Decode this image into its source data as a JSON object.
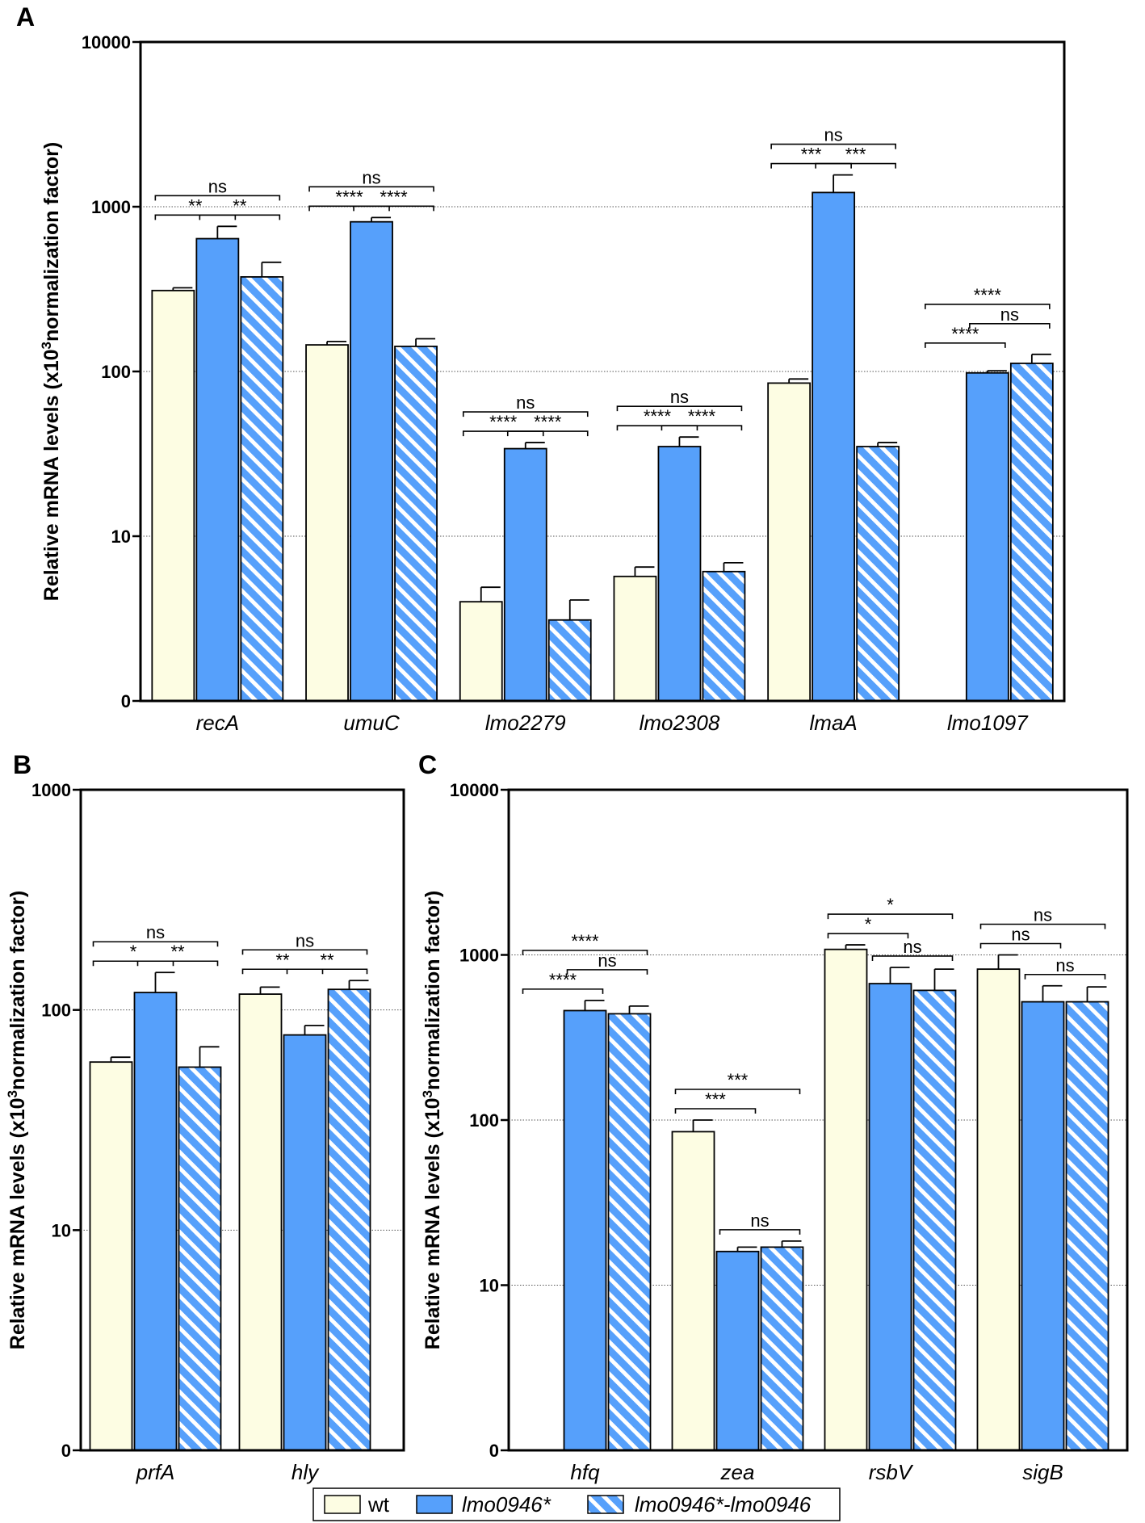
{
  "legend": [
    {
      "label": "wt",
      "italic": false,
      "fill": "#fdfde3"
    },
    {
      "label": "lmo0946*",
      "italic": true,
      "fill": "#56a0fb"
    },
    {
      "label": "lmo0946*-lmo0946",
      "italic": true,
      "fill": "#56a0fb",
      "pattern": "stripes"
    }
  ],
  "colors": {
    "wt": "#fdfde3",
    "mutant": "#56a0fb",
    "stripe": "#ffffff",
    "outline": "#000000",
    "grid": "#555555"
  },
  "chart_data": [
    {
      "panel": "A",
      "type": "bar",
      "scale": "log",
      "ylabel": "Relative mRNA levels (x10³normalization factor)",
      "ylabel_parts": [
        "Relative mRNA levels (x10",
        "3",
        "normalization factor)"
      ],
      "ylim": [
        1,
        10000
      ],
      "yticks": [
        1,
        10,
        100,
        1000,
        10000
      ],
      "ytick_labels": [
        "0",
        "10",
        "100",
        "1000",
        "10000"
      ],
      "categories": [
        "recA",
        "umuC",
        "lmo2279",
        "lmo2308",
        "lmaA",
        "lmo1097"
      ],
      "series": [
        {
          "name": "wt",
          "values": [
            310,
            145,
            4.0,
            5.7,
            85,
            null
          ],
          "errors": [
            322,
            152,
            4.9,
            6.5,
            90,
            null
          ]
        },
        {
          "name": "lmo0946*",
          "values": [
            640,
            810,
            34,
            35,
            1220,
            98
          ],
          "errors": [
            760,
            860,
            37,
            40,
            1560,
            101
          ]
        },
        {
          "name": "lmo0946*-lmo0946",
          "values": [
            375,
            142,
            3.1,
            6.1,
            35,
            112
          ],
          "errors": [
            460,
            158,
            4.1,
            6.9,
            37,
            127
          ]
        }
      ],
      "significance": [
        {
          "category": 0,
          "from": 0,
          "to": 1,
          "label": "**",
          "level": 1
        },
        {
          "category": 0,
          "from": 1,
          "to": 2,
          "label": "**",
          "level": 1
        },
        {
          "category": 0,
          "from": 0,
          "to": 2,
          "label": "ns",
          "level": 2
        },
        {
          "category": 1,
          "from": 0,
          "to": 1,
          "label": "****",
          "level": 1
        },
        {
          "category": 1,
          "from": 1,
          "to": 2,
          "label": "****",
          "level": 1
        },
        {
          "category": 1,
          "from": 0,
          "to": 2,
          "label": "ns",
          "level": 2
        },
        {
          "category": 2,
          "from": 0,
          "to": 1,
          "label": "****",
          "level": 1
        },
        {
          "category": 2,
          "from": 1,
          "to": 2,
          "label": "****",
          "level": 1
        },
        {
          "category": 2,
          "from": 0,
          "to": 2,
          "label": "ns",
          "level": 2
        },
        {
          "category": 3,
          "from": 0,
          "to": 1,
          "label": "****",
          "level": 1
        },
        {
          "category": 3,
          "from": 1,
          "to": 2,
          "label": "****",
          "level": 1
        },
        {
          "category": 3,
          "from": 0,
          "to": 2,
          "label": "ns",
          "level": 2
        },
        {
          "category": 4,
          "from": 0,
          "to": 1,
          "label": "***",
          "level": 1
        },
        {
          "category": 4,
          "from": 1,
          "to": 2,
          "label": "***",
          "level": 1
        },
        {
          "category": 4,
          "from": 0,
          "to": 2,
          "label": "ns",
          "level": 2
        },
        {
          "category": 5,
          "from": 0,
          "to": 1,
          "label": "****",
          "level": 1
        },
        {
          "category": 5,
          "from": 1,
          "to": 2,
          "label": "ns",
          "level": 2
        },
        {
          "category": 5,
          "from": 0,
          "to": 2,
          "label": "****",
          "level": 3
        }
      ]
    },
    {
      "panel": "B",
      "type": "bar",
      "scale": "log",
      "ylabel": "Relative mRNA levels (x10³normalization factor)",
      "ylabel_parts": [
        "Relative mRNA levels (x10",
        "3",
        "normalization factor)"
      ],
      "ylim": [
        1,
        1000
      ],
      "yticks": [
        1,
        10,
        100,
        1000
      ],
      "ytick_labels": [
        "0",
        "10",
        "100",
        "1000"
      ],
      "categories": [
        "prfA",
        "hly"
      ],
      "series": [
        {
          "name": "wt",
          "values": [
            58,
            118
          ],
          "errors": [
            61,
            127
          ]
        },
        {
          "name": "lmo0946*",
          "values": [
            120,
            77
          ],
          "errors": [
            148,
            85
          ]
        },
        {
          "name": "lmo0946*-lmo0946",
          "values": [
            55,
            124
          ],
          "errors": [
            68,
            136
          ]
        }
      ],
      "significance": [
        {
          "category": 0,
          "from": 0,
          "to": 1,
          "label": "*",
          "level": 1
        },
        {
          "category": 0,
          "from": 1,
          "to": 2,
          "label": "**",
          "level": 1
        },
        {
          "category": 0,
          "from": 0,
          "to": 2,
          "label": "ns",
          "level": 2
        },
        {
          "category": 1,
          "from": 0,
          "to": 1,
          "label": "**",
          "level": 1
        },
        {
          "category": 1,
          "from": 1,
          "to": 2,
          "label": "**",
          "level": 1
        },
        {
          "category": 1,
          "from": 0,
          "to": 2,
          "label": "ns",
          "level": 2
        }
      ]
    },
    {
      "panel": "C",
      "type": "bar",
      "scale": "log",
      "ylabel": "Relative mRNA levels (x10³normalization factor)",
      "ylabel_parts": [
        "Relative mRNA levels (x10",
        "3",
        "normalization factor)"
      ],
      "ylim": [
        1,
        10000
      ],
      "yticks": [
        1,
        10,
        100,
        1000,
        10000
      ],
      "ytick_labels": [
        "0",
        "10",
        "100",
        "1000",
        "10000"
      ],
      "categories": [
        "hfq",
        "zea",
        "rsbV",
        "sigB"
      ],
      "series": [
        {
          "name": "wt",
          "values": [
            null,
            85,
            1080,
            820
          ],
          "errors": [
            null,
            100,
            1150,
            1000
          ]
        },
        {
          "name": "lmo0946*",
          "values": [
            460,
            16,
            670,
            520
          ],
          "errors": [
            530,
            17,
            840,
            650
          ]
        },
        {
          "name": "lmo0946*-lmo0946",
          "values": [
            440,
            17,
            610,
            520
          ],
          "errors": [
            490,
            18.5,
            820,
            640
          ]
        }
      ],
      "significance": [
        {
          "category": 0,
          "from": 0,
          "to": 1,
          "label": "****",
          "level": 1
        },
        {
          "category": 0,
          "from": 1,
          "to": 2,
          "label": "ns",
          "level": 2
        },
        {
          "category": 0,
          "from": 0,
          "to": 2,
          "label": "****",
          "level": 3
        },
        {
          "category": 1,
          "from": 0,
          "to": 1,
          "label": "***",
          "level": 1
        },
        {
          "category": 1,
          "from": 1,
          "to": 2,
          "label": "ns",
          "level": 0
        },
        {
          "category": 1,
          "from": 0,
          "to": 2,
          "label": "***",
          "level": 2
        },
        {
          "category": 2,
          "from": 0,
          "to": 1,
          "label": "*",
          "level": 1
        },
        {
          "category": 2,
          "from": 1,
          "to": 2,
          "label": "ns",
          "level": 0
        },
        {
          "category": 2,
          "from": 0,
          "to": 2,
          "label": "*",
          "level": 2
        },
        {
          "category": 3,
          "from": 0,
          "to": 1,
          "label": "ns",
          "level": 1
        },
        {
          "category": 3,
          "from": 1,
          "to": 2,
          "label": "ns",
          "level": 0
        },
        {
          "category": 3,
          "from": 0,
          "to": 2,
          "label": "ns",
          "level": 2
        }
      ]
    }
  ]
}
